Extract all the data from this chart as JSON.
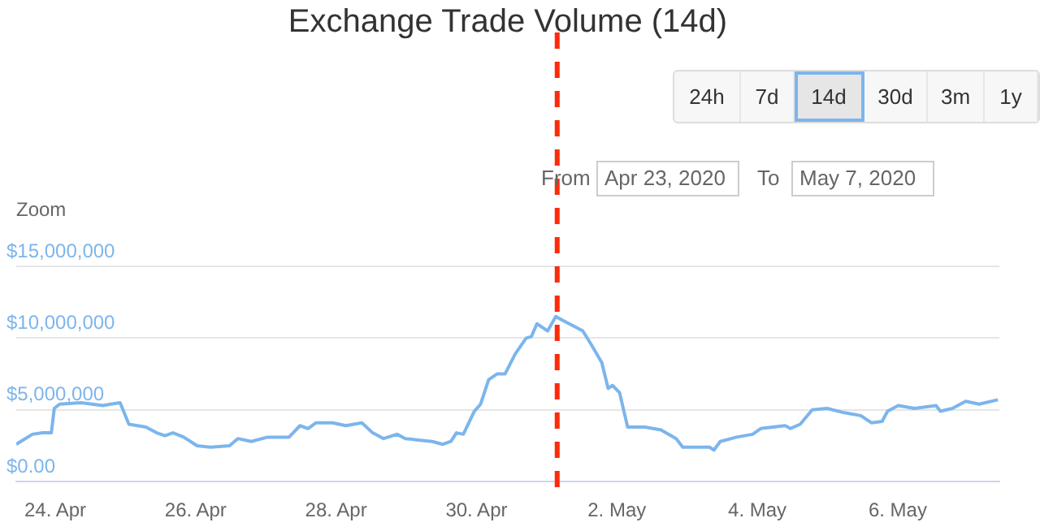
{
  "chart_data": {
    "type": "line",
    "title": "Exchange Trade Volume (14d)",
    "x": [
      "2020-04-23T10:40",
      "2020-04-23T16:10",
      "2020-04-23T19:40",
      "2020-04-23T22:40",
      "2020-04-23T23:40",
      "2020-04-24T01:30",
      "2020-04-24T08:50",
      "2020-04-24T16:15",
      "2020-04-24T19:00",
      "2020-04-24T22:10",
      "2020-04-25T01:10",
      "2020-04-25T07:00",
      "2020-04-25T10:40",
      "2020-04-25T13:30",
      "2020-04-25T16:15",
      "2020-04-25T19:55",
      "2020-04-26T00:30",
      "2020-04-26T05:10",
      "2020-04-26T11:35",
      "2020-04-26T14:25",
      "2020-04-26T19:00",
      "2020-04-27T00:35",
      "2020-04-27T07:55",
      "2020-04-27T11:40",
      "2020-04-27T14:25",
      "2020-04-27T17:10",
      "2020-04-27T22:45",
      "2020-04-28T03:20",
      "2020-04-28T08:50",
      "2020-04-28T12:30",
      "2020-04-28T16:15",
      "2020-04-28T20:50",
      "2020-04-28T23:40",
      "2020-04-29T08:50",
      "2020-04-29T12:30",
      "2020-04-29T15:15",
      "2020-04-29T17:10",
      "2020-04-29T19:30",
      "2020-04-29T23:15",
      "2020-04-30T01:25",
      "2020-04-30T04:10",
      "2020-04-30T07:00",
      "2020-04-30T09:45",
      "2020-04-30T13:15",
      "2020-04-30T17:00",
      "2020-04-30T18:45",
      "2020-04-30T20:40",
      "2020-05-01T00:20",
      "2020-05-01T03:05",
      "2020-05-01T05:50",
      "2020-05-01T12:20",
      "2020-05-01T15:05",
      "2020-05-01T18:50",
      "2020-05-01T21:00",
      "2020-05-01T22:30",
      "2020-05-02T00:55",
      "2020-05-02T03:40",
      "2020-05-02T09:35",
      "2020-05-02T15:05",
      "2020-05-02T20:15",
      "2020-05-02T22:30",
      "2020-05-03T07:40",
      "2020-05-03T09:10",
      "2020-05-03T11:20",
      "2020-05-03T16:55",
      "2020-05-03T22:25",
      "2020-05-04T01:10",
      "2020-05-04T09:30",
      "2020-05-04T11:20",
      "2020-05-04T14:40",
      "2020-05-04T18:45",
      "2020-05-04T23:50",
      "2020-05-05T05:45",
      "2020-05-05T11:20",
      "2020-05-05T15:00",
      "2020-05-05T18:40",
      "2020-05-05T20:30",
      "2020-05-06T00:10",
      "2020-05-06T05:45",
      "2020-05-06T13:05",
      "2020-05-06T14:35",
      "2020-05-06T18:40",
      "2020-05-06T23:15",
      "2020-05-07T03:50",
      "2020-05-07T10:15"
    ],
    "series": [
      {
        "color": "#7cb5ec",
        "values": [
          2600000,
          3300000,
          3400000,
          3400000,
          5100000,
          5400000,
          5500000,
          5300000,
          5400000,
          5500000,
          4000000,
          3800000,
          3400000,
          3200000,
          3400000,
          3100000,
          2500000,
          2400000,
          2500000,
          3000000,
          2800000,
          3100000,
          3100000,
          3900000,
          3700000,
          4100000,
          4100000,
          3900000,
          4100000,
          3400000,
          3000000,
          3300000,
          3000000,
          2800000,
          2600000,
          2800000,
          3400000,
          3300000,
          4900000,
          5400000,
          7100000,
          7500000,
          7500000,
          8900000,
          10000000,
          10100000,
          11000000,
          10500000,
          11500000,
          11200000,
          10500000,
          9600000,
          8300000,
          6500000,
          6700000,
          6200000,
          3800000,
          3800000,
          3600000,
          3000000,
          2400000,
          2400000,
          2200000,
          2800000,
          3100000,
          3300000,
          3700000,
          3900000,
          3700000,
          4000000,
          5000000,
          5100000,
          4800000,
          4600000,
          4100000,
          4200000,
          4900000,
          5300000,
          5100000,
          5300000,
          4900000,
          5100000,
          5600000,
          5400000,
          5700000
        ]
      }
    ],
    "xlim": [
      "2020-04-23T10:40",
      "2020-05-07T10:45"
    ],
    "xticks": [
      {
        "value": "2020-04-24",
        "label": "24. Apr"
      },
      {
        "value": "2020-04-26",
        "label": "26. Apr"
      },
      {
        "value": "2020-04-28",
        "label": "28. Apr"
      },
      {
        "value": "2020-04-30",
        "label": "30. Apr"
      },
      {
        "value": "2020-05-02",
        "label": "2. May"
      },
      {
        "value": "2020-05-04",
        "label": "4. May"
      },
      {
        "value": "2020-05-06",
        "label": "6. May"
      }
    ],
    "ylim": [
      0,
      15000000
    ],
    "yticks": [
      {
        "value": 0,
        "label": "$0.00"
      },
      {
        "value": 5000000,
        "label": "$5,000,000"
      },
      {
        "value": 10000000,
        "label": "$10,000,000"
      },
      {
        "value": 15000000,
        "label": "$15,000,000"
      }
    ],
    "grid": "y",
    "legend": false,
    "marker": "none",
    "line_style": "solid",
    "ref_lines": [
      {
        "axis": "x",
        "value": "2020-05-01T03:35",
        "color": "#ff2a0a",
        "line_style": "dashed"
      }
    ],
    "annotations": [
      "Zoom",
      "24h",
      "7d",
      "14d",
      "30d",
      "3m",
      "1y",
      "From",
      "Apr 23, 2020",
      "To",
      "May 7, 2020"
    ]
  }
}
